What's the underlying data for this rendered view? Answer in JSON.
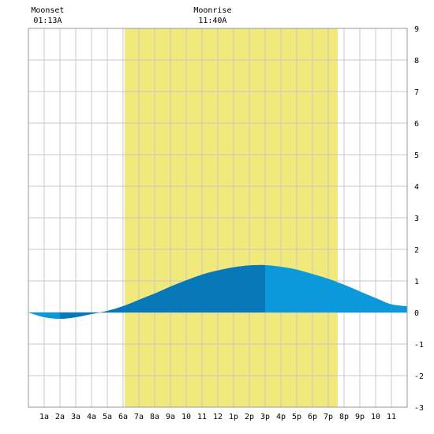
{
  "chart_data": {
    "type": "area",
    "x_unit": "hour of day",
    "x_ticks": [
      {
        "x": 1,
        "label": "1a"
      },
      {
        "x": 2,
        "label": "2a"
      },
      {
        "x": 3,
        "label": "3a"
      },
      {
        "x": 4,
        "label": "4a"
      },
      {
        "x": 5,
        "label": "5a"
      },
      {
        "x": 6,
        "label": "6a"
      },
      {
        "x": 7,
        "label": "7a"
      },
      {
        "x": 8,
        "label": "8a"
      },
      {
        "x": 9,
        "label": "9a"
      },
      {
        "x": 10,
        "label": "10"
      },
      {
        "x": 11,
        "label": "11"
      },
      {
        "x": 12,
        "label": "12"
      },
      {
        "x": 13,
        "label": "1p"
      },
      {
        "x": 14,
        "label": "2p"
      },
      {
        "x": 15,
        "label": "3p"
      },
      {
        "x": 16,
        "label": "4p"
      },
      {
        "x": 17,
        "label": "5p"
      },
      {
        "x": 18,
        "label": "6p"
      },
      {
        "x": 19,
        "label": "7p"
      },
      {
        "x": 20,
        "label": "8p"
      },
      {
        "x": 21,
        "label": "9p"
      },
      {
        "x": 22,
        "label": "10"
      },
      {
        "x": 23,
        "label": "11"
      }
    ],
    "xlim": [
      0,
      24
    ],
    "ylim": [
      -3,
      9
    ],
    "y_ticks": [
      9,
      8,
      7,
      6,
      5,
      4,
      3,
      2,
      1,
      0,
      -1,
      -2,
      -3
    ],
    "grid": true,
    "daylight_hours": [
      6.1,
      19.6
    ],
    "moon_events": [
      {
        "label": "Moonset",
        "time": "01:13A",
        "x": 1.22
      },
      {
        "label": "Moonrise",
        "time": "11:40A",
        "x": 11.67
      }
    ],
    "series": [
      {
        "x": [
          0,
          1,
          2,
          3,
          4,
          5,
          6,
          7,
          8,
          9,
          10,
          11,
          12,
          13,
          14,
          15,
          16,
          17,
          18,
          19,
          20,
          21,
          22,
          23,
          24
        ],
        "values": [
          0.0,
          -0.15,
          -0.2,
          -0.15,
          -0.05,
          0.05,
          0.2,
          0.4,
          0.6,
          0.82,
          1.02,
          1.2,
          1.33,
          1.43,
          1.49,
          1.5,
          1.45,
          1.36,
          1.22,
          1.07,
          0.88,
          0.67,
          0.46,
          0.26,
          0.2
        ]
      }
    ],
    "low_tide_x": 2,
    "high_tide_x": 15,
    "colors": {
      "background": "#ffffff",
      "daylight": "#f2e97d",
      "grid": "#c8c8c8",
      "tide_light": "#0b99dc",
      "tide_dark": "#0779b9"
    }
  }
}
